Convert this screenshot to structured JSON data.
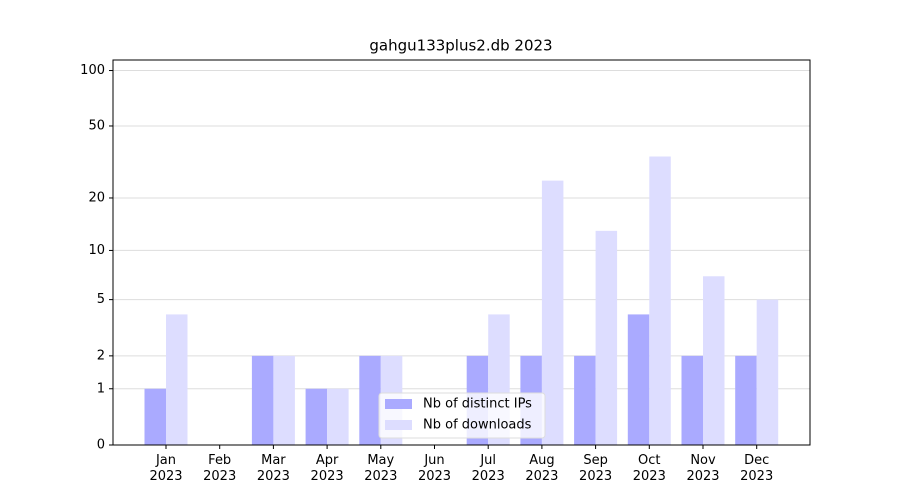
{
  "chart_data": {
    "type": "bar",
    "title": "gahgu133plus2.db 2023",
    "categories": [
      "Jan\n2023",
      "Feb\n2023",
      "Mar\n2023",
      "Apr\n2023",
      "May\n2023",
      "Jun\n2023",
      "Jul\n2023",
      "Aug\n2023",
      "Sep\n2023",
      "Oct\n2023",
      "Nov\n2023",
      "Dec\n2023"
    ],
    "series": [
      {
        "name": "Nb of distinct IPs",
        "color": "#aaaaff",
        "values": [
          1,
          0,
          2,
          1,
          2,
          0,
          2,
          2,
          2,
          4,
          2,
          2
        ]
      },
      {
        "name": "Nb of downloads",
        "color": "#ddddff",
        "values": [
          4,
          0,
          2,
          1,
          2,
          0,
          4,
          25,
          13,
          34,
          7,
          5
        ]
      }
    ],
    "yscale": "log1p",
    "ylim": [
      0,
      114
    ],
    "yticks": [
      0,
      1,
      2,
      5,
      10,
      20,
      50,
      100
    ],
    "grid": true,
    "legend": "lower center"
  }
}
